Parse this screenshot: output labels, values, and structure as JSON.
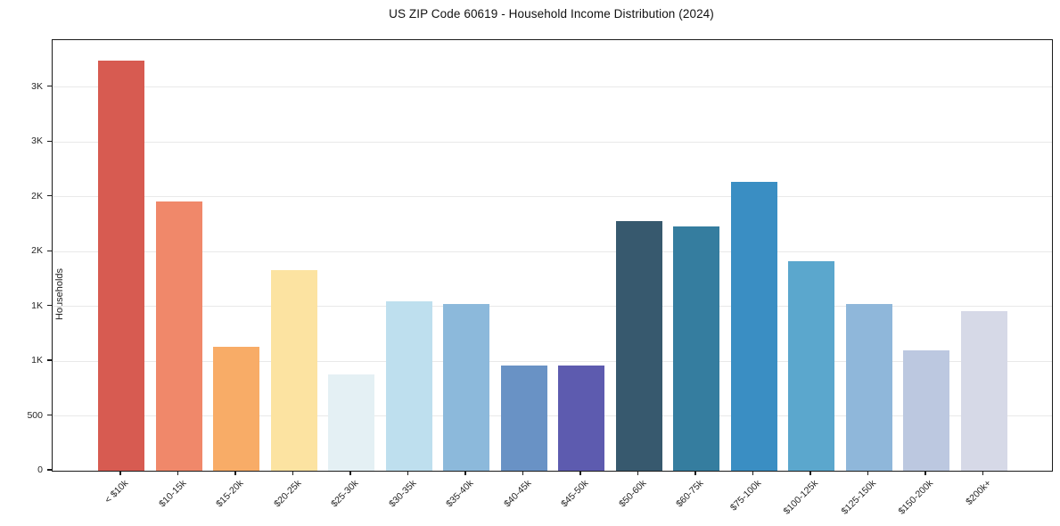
{
  "title": "US ZIP Code 60619 - Household Income Distribution (2024)",
  "chart_data": {
    "type": "bar",
    "title": "US ZIP Code 60619 - Household Income Distribution (2024)",
    "xlabel": "",
    "ylabel": "Households",
    "categories": [
      "< $10k",
      "$10-15k",
      "$15-20k",
      "$20-25k",
      "$25-30k",
      "$30-35k",
      "$35-40k",
      "$40-45k",
      "$45-50k",
      "$50-60k",
      "$60-75k",
      "$75-100k",
      "$100-125k",
      "$125-150k",
      "$150-200k",
      "$200k+"
    ],
    "values": [
      3740,
      2460,
      1130,
      1830,
      880,
      1550,
      1520,
      960,
      960,
      2280,
      2230,
      2640,
      1910,
      1520,
      1100,
      1460
    ],
    "bar_colors": [
      "#d75b51",
      "#f0886a",
      "#f8ac67",
      "#fce3a1",
      "#e4f0f4",
      "#bedfee",
      "#8cb9db",
      "#6992c5",
      "#5d5baf",
      "#37596e",
      "#357d9f",
      "#3a8ec3",
      "#5ba7cd",
      "#8fb7da",
      "#bcc8e0",
      "#d6d9e7"
    ],
    "ylim": [
      0,
      3930
    ],
    "ytick_values": [
      0,
      500,
      1000,
      1500,
      2000,
      2500,
      3000,
      3500
    ],
    "ytick_labels": [
      "0",
      "500",
      "1K",
      "1K",
      "2K",
      "2K",
      "3K",
      "3K"
    ],
    "xtick_rotation": 45,
    "grid": "horizontal-only",
    "gridline_color": "#e9e9e9",
    "background_color": "#ffffff",
    "legend": "none"
  }
}
